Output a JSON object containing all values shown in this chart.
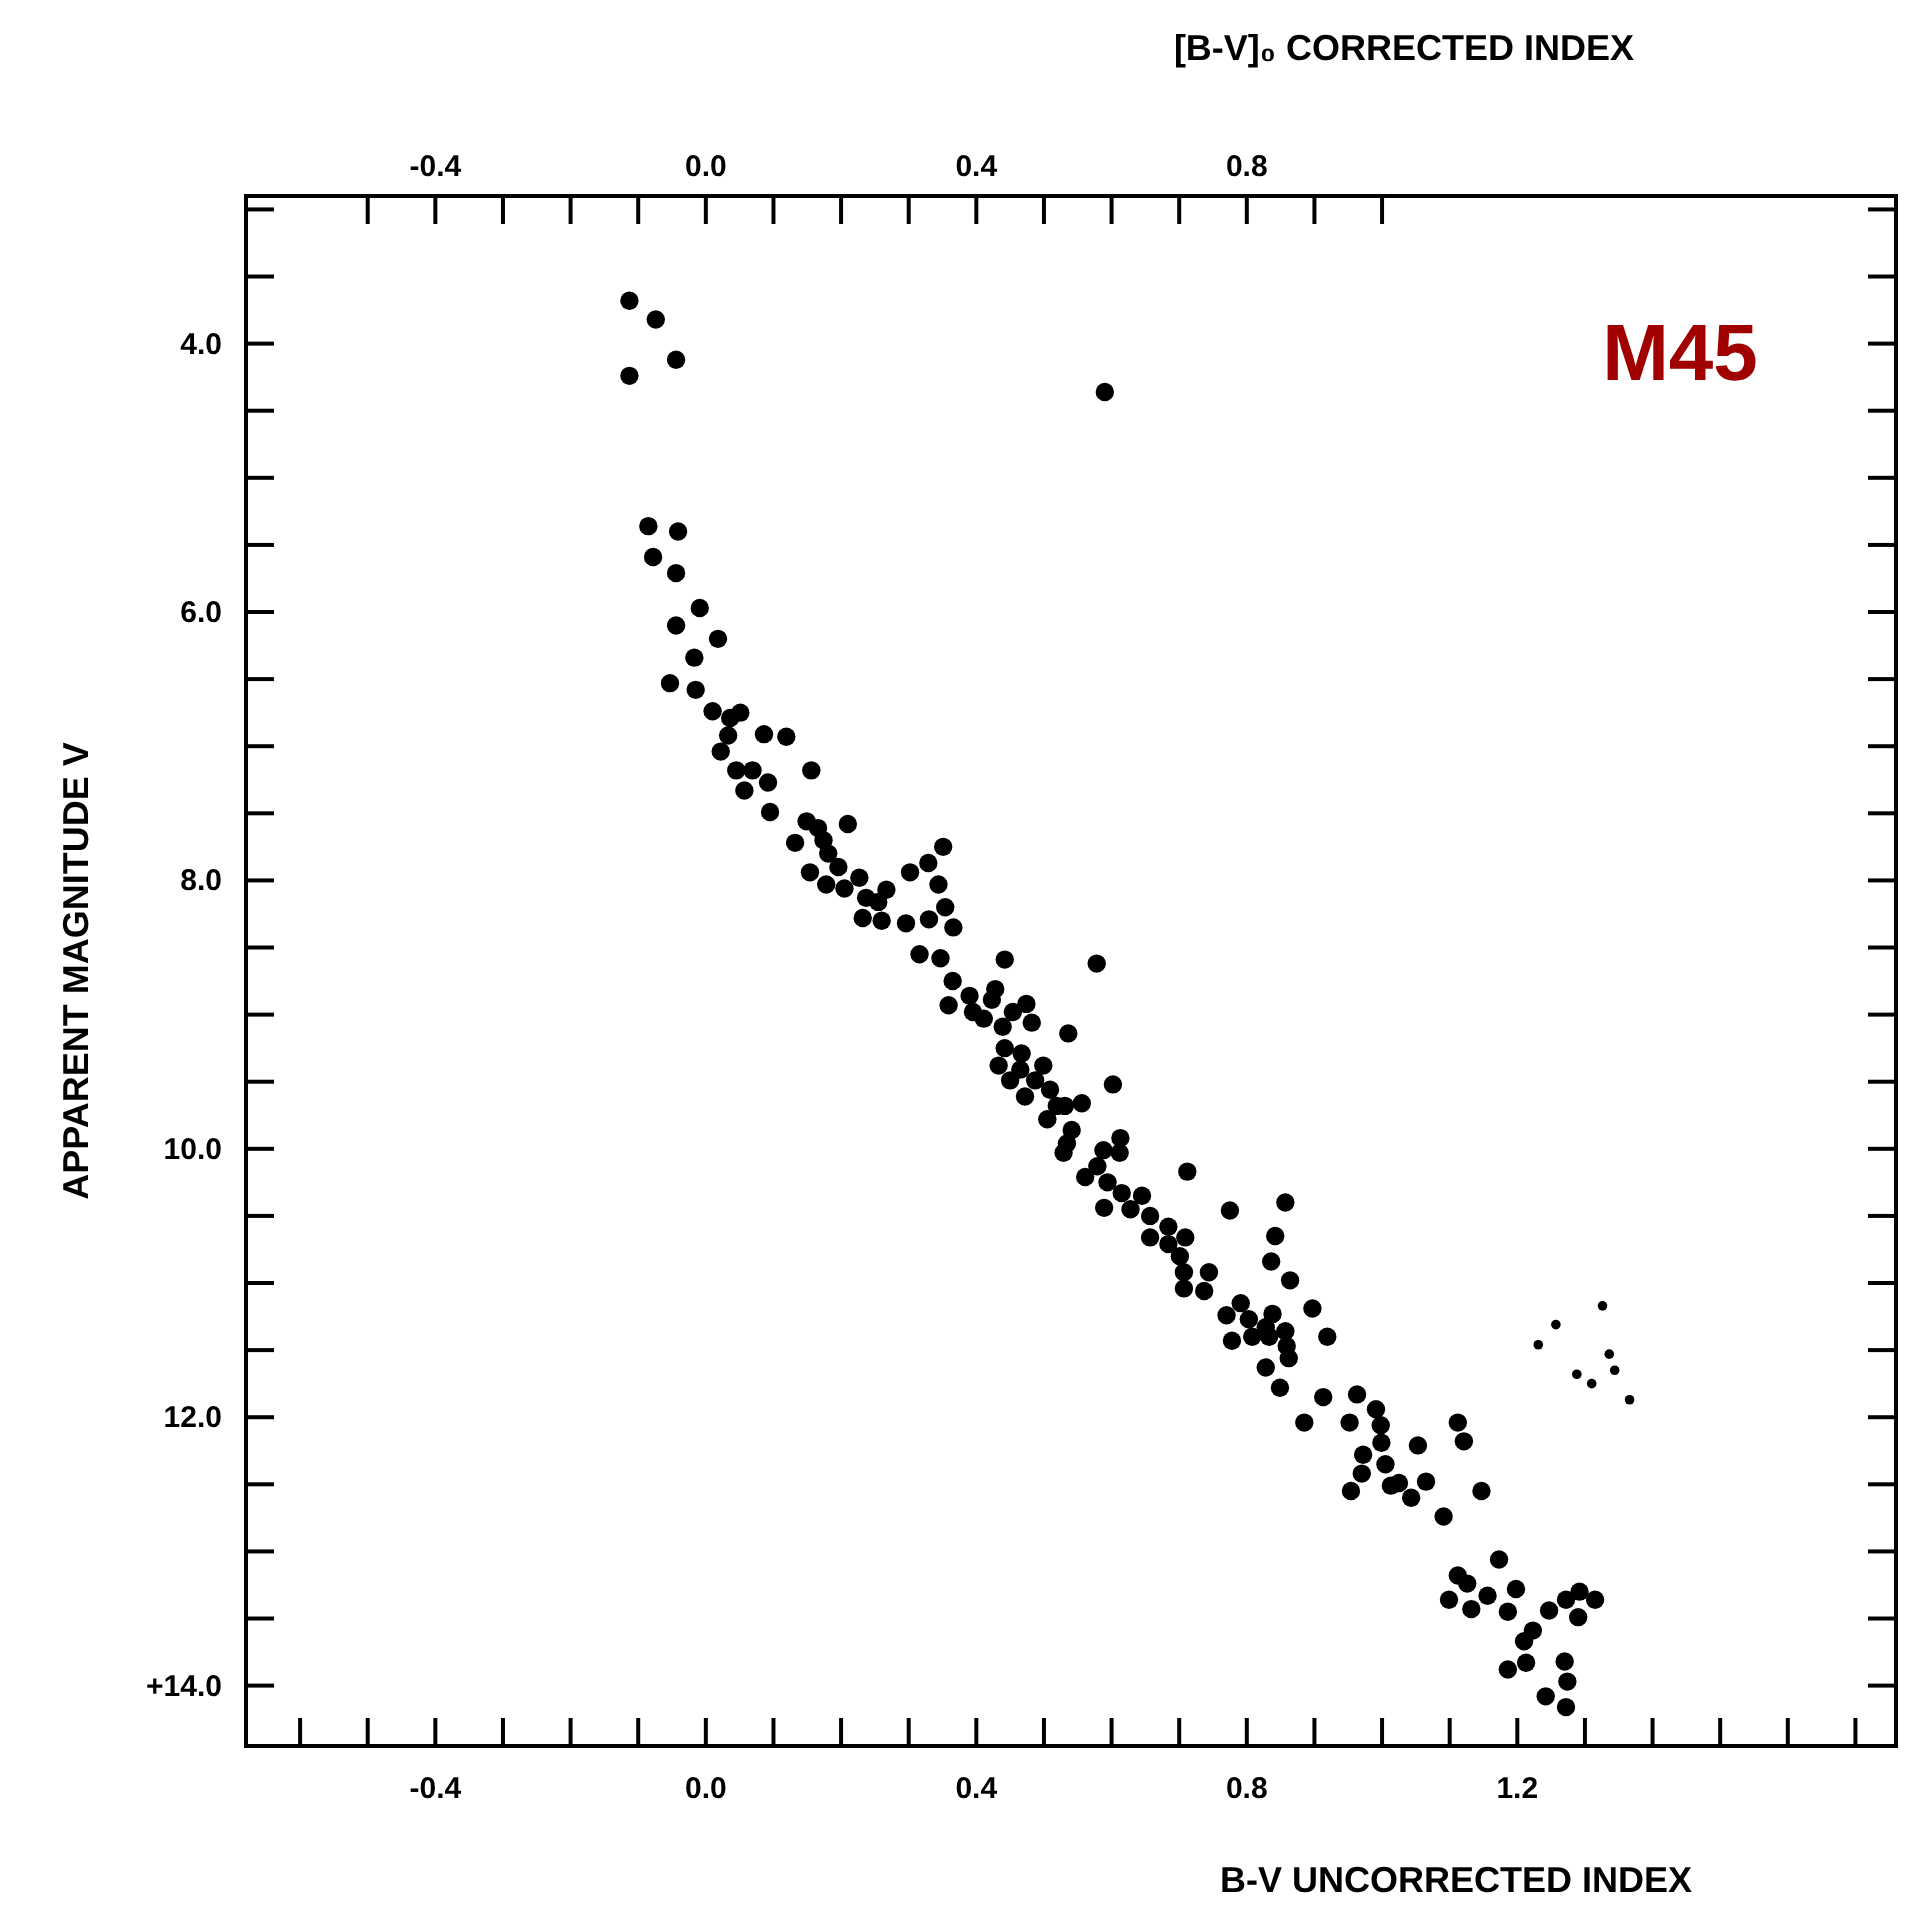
{
  "chart_data": {
    "type": "scatter",
    "title": null,
    "xlabel": "B-V  UNCORRECTED INDEX",
    "x2label": "[B-V]₀ CORRECTED INDEX",
    "ylabel": "APPARENT MAGNITUDE  V",
    "annotations": [
      "M45"
    ],
    "marker": "circle",
    "grid": false,
    "legend": false,
    "xlim": [
      -0.68,
      1.76
    ],
    "ylim": [
      14.45,
      2.9
    ],
    "x2lim": [
      -0.68,
      1.76
    ],
    "xticks": [
      {
        "value": -0.6,
        "label": null
      },
      {
        "value": -0.5,
        "label": null
      },
      {
        "value": -0.4,
        "label": "-0.4"
      },
      {
        "value": -0.3,
        "label": null
      },
      {
        "value": -0.2,
        "label": null
      },
      {
        "value": -0.1,
        "label": null
      },
      {
        "value": 0,
        "label": "0.0"
      },
      {
        "value": 0.1,
        "label": null
      },
      {
        "value": 0.2,
        "label": null
      },
      {
        "value": 0.3,
        "label": null
      },
      {
        "value": 0.4,
        "label": "0.4"
      },
      {
        "value": 0.5,
        "label": null
      },
      {
        "value": 0.6,
        "label": null
      },
      {
        "value": 0.7,
        "label": null
      },
      {
        "value": 0.8,
        "label": "0.8"
      },
      {
        "value": 0.9,
        "label": null
      },
      {
        "value": 1.0,
        "label": null
      },
      {
        "value": 1.1,
        "label": null
      },
      {
        "value": 1.2,
        "label": "1.2"
      },
      {
        "value": 1.3,
        "label": null
      },
      {
        "value": 1.4,
        "label": null
      },
      {
        "value": 1.5,
        "label": null
      },
      {
        "value": 1.6,
        "label": null
      },
      {
        "value": 1.7,
        "label": null
      }
    ],
    "x2ticks": [
      {
        "value": -0.5,
        "label": null
      },
      {
        "value": -0.4,
        "label": "-0.4"
      },
      {
        "value": -0.3,
        "label": null
      },
      {
        "value": -0.2,
        "label": null
      },
      {
        "value": -0.1,
        "label": null
      },
      {
        "value": 0,
        "label": "0.0"
      },
      {
        "value": 0.1,
        "label": null
      },
      {
        "value": 0.2,
        "label": null
      },
      {
        "value": 0.3,
        "label": null
      },
      {
        "value": 0.4,
        "label": "0.4"
      },
      {
        "value": 0.5,
        "label": null
      },
      {
        "value": 0.6,
        "label": null
      },
      {
        "value": 0.7,
        "label": null
      },
      {
        "value": 0.8,
        "label": "0.8"
      },
      {
        "value": 0.9,
        "label": null
      },
      {
        "value": 1.0,
        "label": null
      }
    ],
    "yticks": [
      {
        "value": 3,
        "label": null
      },
      {
        "value": 3.5,
        "label": null
      },
      {
        "value": 4,
        "label": "4.0"
      },
      {
        "value": 4.5,
        "label": null
      },
      {
        "value": 5,
        "label": null
      },
      {
        "value": 5.5,
        "label": null
      },
      {
        "value": 6,
        "label": "6.0"
      },
      {
        "value": 6.5,
        "label": null
      },
      {
        "value": 7,
        "label": null
      },
      {
        "value": 7.5,
        "label": null
      },
      {
        "value": 8,
        "label": "8.0"
      },
      {
        "value": 8.5,
        "label": null
      },
      {
        "value": 9,
        "label": null
      },
      {
        "value": 9.5,
        "label": null
      },
      {
        "value": 10,
        "label": "10.0"
      },
      {
        "value": 10.5,
        "label": null
      },
      {
        "value": 11,
        "label": null
      },
      {
        "value": 11.5,
        "label": null
      },
      {
        "value": 12,
        "label": "12.0"
      },
      {
        "value": 12.5,
        "label": null
      },
      {
        "value": 13,
        "label": null
      },
      {
        "value": 13.5,
        "label": null
      },
      {
        "value": 14,
        "label": "+14.0"
      }
    ],
    "series": [
      {
        "color": "#000000",
        "x": [
          -0.113,
          -0.074,
          -0.044,
          -0.113,
          0.59,
          -0.085,
          -0.041,
          -0.078,
          -0.044,
          -0.009,
          -0.044,
          0.018,
          -0.017,
          -0.053,
          -0.015,
          0.01,
          0.036,
          0.051,
          0.033,
          0.086,
          0.119,
          0.022,
          0.045,
          0.069,
          0.156,
          0.092,
          0.057,
          0.095,
          0.149,
          0.166,
          0.21,
          0.132,
          0.174,
          0.181,
          0.196,
          0.154,
          0.178,
          0.205,
          0.227,
          0.267,
          0.237,
          0.255,
          0.232,
          0.26,
          0.302,
          0.329,
          0.351,
          0.344,
          0.296,
          0.33,
          0.354,
          0.366,
          0.316,
          0.347,
          0.442,
          0.578,
          0.365,
          0.359,
          0.39,
          0.395,
          0.411,
          0.423,
          0.428,
          0.454,
          0.474,
          0.482,
          0.439,
          0.536,
          0.442,
          0.467,
          0.433,
          0.465,
          0.499,
          0.45,
          0.487,
          0.472,
          0.509,
          0.602,
          0.519,
          0.531,
          0.556,
          0.505,
          0.541,
          0.534,
          0.529,
          0.588,
          0.613,
          0.612,
          0.561,
          0.579,
          0.594,
          0.712,
          0.589,
          0.615,
          0.628,
          0.645,
          0.657,
          0.775,
          0.684,
          0.657,
          0.684,
          0.709,
          0.701,
          0.707,
          0.707,
          0.744,
          0.737,
          0.857,
          0.842,
          0.836,
          0.864,
          0.77,
          0.791,
          0.803,
          0.778,
          0.808,
          0.828,
          0.838,
          0.833,
          0.857,
          0.859,
          0.862,
          0.828,
          0.897,
          0.919,
          0.849,
          0.913,
          0.885,
          0.963,
          0.991,
          0.952,
          0.998,
          0.999,
          0.972,
          0.97,
          0.954,
          1.005,
          1.013,
          1.025,
          1.043,
          1.053,
          1.065,
          1.091,
          1.112,
          1.121,
          1.147,
          1.173,
          1.112,
          1.099,
          1.126,
          1.132,
          1.156,
          1.186,
          1.198,
          1.223,
          1.21,
          1.213,
          1.186,
          1.247,
          1.272,
          1.292,
          1.315,
          1.29,
          1.27,
          1.274,
          1.242,
          1.272
        ],
        "values": [
          3.68,
          3.82,
          4.12,
          4.24,
          4.36,
          5.36,
          5.4,
          5.59,
          5.71,
          5.97,
          6.1,
          6.2,
          6.34,
          6.53,
          6.58,
          6.74,
          6.79,
          6.75,
          6.92,
          6.91,
          6.93,
          7.04,
          7.18,
          7.18,
          7.18,
          7.27,
          7.33,
          7.49,
          7.56,
          7.61,
          7.58,
          7.72,
          7.7,
          7.8,
          7.9,
          7.94,
          8.03,
          8.06,
          7.98,
          8.07,
          8.13,
          8.16,
          8.28,
          8.3,
          7.94,
          7.87,
          7.75,
          8.03,
          8.32,
          8.29,
          8.2,
          8.35,
          8.55,
          8.58,
          8.59,
          8.62,
          8.75,
          8.93,
          8.86,
          8.98,
          9.03,
          8.89,
          8.81,
          8.98,
          8.92,
          9.06,
          9.09,
          9.14,
          9.25,
          9.29,
          9.38,
          9.41,
          9.38,
          9.49,
          9.49,
          9.61,
          9.56,
          9.52,
          9.68,
          9.68,
          9.66,
          9.78,
          9.86,
          9.96,
          10.03,
          10.01,
          9.92,
          10.03,
          10.21,
          10.13,
          10.25,
          10.17,
          10.44,
          10.33,
          10.45,
          10.35,
          10.5,
          10.46,
          10.58,
          10.66,
          10.71,
          10.66,
          10.8,
          10.92,
          11.04,
          10.92,
          11.06,
          10.4,
          10.65,
          10.84,
          10.98,
          11.24,
          11.15,
          11.27,
          11.43,
          11.4,
          11.33,
          11.23,
          11.4,
          11.36,
          11.47,
          11.56,
          11.63,
          11.19,
          11.4,
          11.78,
          11.85,
          12.04,
          11.83,
          11.94,
          12.04,
          12.06,
          12.19,
          12.28,
          12.42,
          12.55,
          12.35,
          12.51,
          12.49,
          12.6,
          12.21,
          12.48,
          12.74,
          12.04,
          12.18,
          12.55,
          13.06,
          13.18,
          13.36,
          13.24,
          13.43,
          13.33,
          13.45,
          13.28,
          13.59,
          13.67,
          13.83,
          13.88,
          13.44,
          13.36,
          13.3,
          13.36,
          13.49,
          13.82,
          13.97,
          14.08,
          14.16
        ]
      },
      {
        "color": "#000000",
        "x": [
          1.326,
          1.257,
          1.231,
          1.336,
          1.344,
          1.288,
          1.31,
          1.366
        ],
        "values": [
          11.17,
          11.31,
          11.46,
          11.53,
          11.65,
          11.68,
          11.75,
          11.87
        ]
      }
    ]
  }
}
